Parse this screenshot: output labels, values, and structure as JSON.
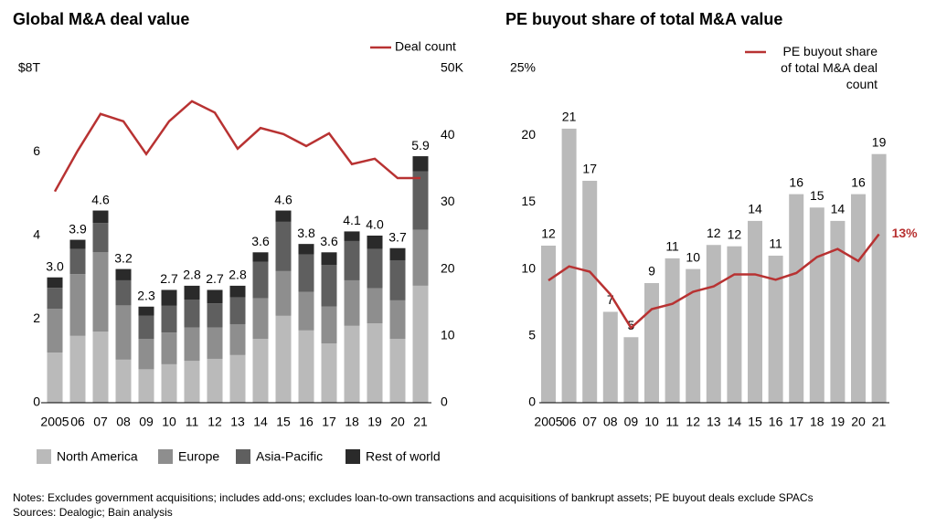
{
  "chart_data": [
    {
      "type": "stacked_bar",
      "title": "Global M&A deal value",
      "categories": [
        "2005",
        "06",
        "07",
        "08",
        "09",
        "10",
        "11",
        "12",
        "13",
        "14",
        "15",
        "16",
        "17",
        "18",
        "19",
        "20",
        "21"
      ],
      "series": [
        {
          "name": "North America",
          "color": "#bababa",
          "values": [
            1.2,
            1.6,
            1.7,
            1.03,
            0.8,
            0.92,
            1.0,
            1.05,
            1.14,
            1.53,
            2.08,
            1.73,
            1.42,
            1.84,
            1.9,
            1.53,
            2.8
          ]
        },
        {
          "name": "Europe",
          "color": "#8e8e8e",
          "values": [
            1.05,
            1.48,
            1.9,
            1.3,
            0.73,
            0.76,
            0.8,
            0.75,
            0.74,
            0.97,
            1.07,
            0.92,
            0.88,
            1.09,
            0.84,
            0.92,
            1.34
          ]
        },
        {
          "name": "Asia-Pacific",
          "color": "#5f5f5f",
          "values": [
            0.5,
            0.6,
            0.7,
            0.6,
            0.55,
            0.64,
            0.67,
            0.58,
            0.64,
            0.87,
            1.18,
            0.9,
            1.0,
            0.94,
            0.94,
            0.96,
            1.4
          ]
        },
        {
          "name": "Rest of world",
          "color": "#2a2a2a",
          "values": [
            0.25,
            0.22,
            0.3,
            0.27,
            0.22,
            0.38,
            0.33,
            0.32,
            0.28,
            0.23,
            0.27,
            0.25,
            0.3,
            0.23,
            0.32,
            0.29,
            0.36
          ]
        },
        {
          "name": "Deal count",
          "color": "#b83232",
          "type": "line",
          "axis": "y2",
          "values": [
            31.6,
            37.7,
            43.2,
            42.1,
            37.2,
            42.1,
            45.1,
            43.4,
            38.0,
            41.1,
            40.2,
            38.4,
            40.3,
            35.7,
            36.5,
            33.6,
            33.6
          ]
        }
      ],
      "total_labels": [
        "3.0",
        "3.9",
        "4.6",
        "3.2",
        "2.3",
        "2.7",
        "2.8",
        "2.7",
        "2.8",
        "3.6",
        "4.6",
        "3.8",
        "3.6",
        "4.1",
        "4.0",
        "3.7",
        "5.9"
      ],
      "ylim": [
        0,
        8
      ],
      "yticks": [
        0,
        2,
        4,
        6,
        {
          "value": 8,
          "label": "$8T"
        }
      ],
      "y2lim": [
        0,
        50
      ],
      "y2ticks": [
        0,
        10,
        20,
        30,
        40,
        {
          "value": 50,
          "label": "50K"
        }
      ],
      "legend": "bottom",
      "line_legend": "upper right"
    },
    {
      "type": "bar",
      "title": "PE buyout share of total M&A value",
      "categories": [
        "2005",
        "06",
        "07",
        "08",
        "09",
        "10",
        "11",
        "12",
        "13",
        "14",
        "15",
        "16",
        "17",
        "18",
        "19",
        "20",
        "21"
      ],
      "series": [
        {
          "name": "PE buyout share of total M&A value",
          "color": "#bababa",
          "values": [
            11.75,
            20.5,
            16.6,
            6.8,
            4.9,
            8.95,
            10.8,
            10.0,
            11.8,
            11.7,
            13.6,
            11.0,
            15.6,
            14.6,
            13.6,
            15.6,
            18.6
          ],
          "value_labels": [
            "12",
            "21",
            "17",
            "7",
            "5",
            "9",
            "11",
            "10",
            "12",
            "12",
            "14",
            "11",
            "16",
            "15",
            "14",
            "16",
            "19"
          ]
        },
        {
          "name": "PE buyout share of total M&A deal count",
          "color": "#b83232",
          "type": "line",
          "values": [
            9.15,
            10.2,
            9.8,
            8.1,
            5.6,
            7.0,
            7.4,
            8.3,
            8.7,
            9.6,
            9.6,
            9.2,
            9.7,
            10.9,
            11.5,
            10.6,
            12.6
          ],
          "end_label": "13%"
        }
      ],
      "ylim": [
        0,
        25
      ],
      "yticks": [
        0,
        5,
        10,
        15,
        20,
        {
          "value": 25,
          "label": "25%"
        }
      ],
      "line_legend": "upper right"
    }
  ],
  "notes": "Notes: Excludes government acquisitions; includes add-ons; excludes loan-to-own transactions and acquisitions of bankrupt assets; PE buyout deals exclude SPACs",
  "sources": "Sources: Dealogic; Bain analysis"
}
